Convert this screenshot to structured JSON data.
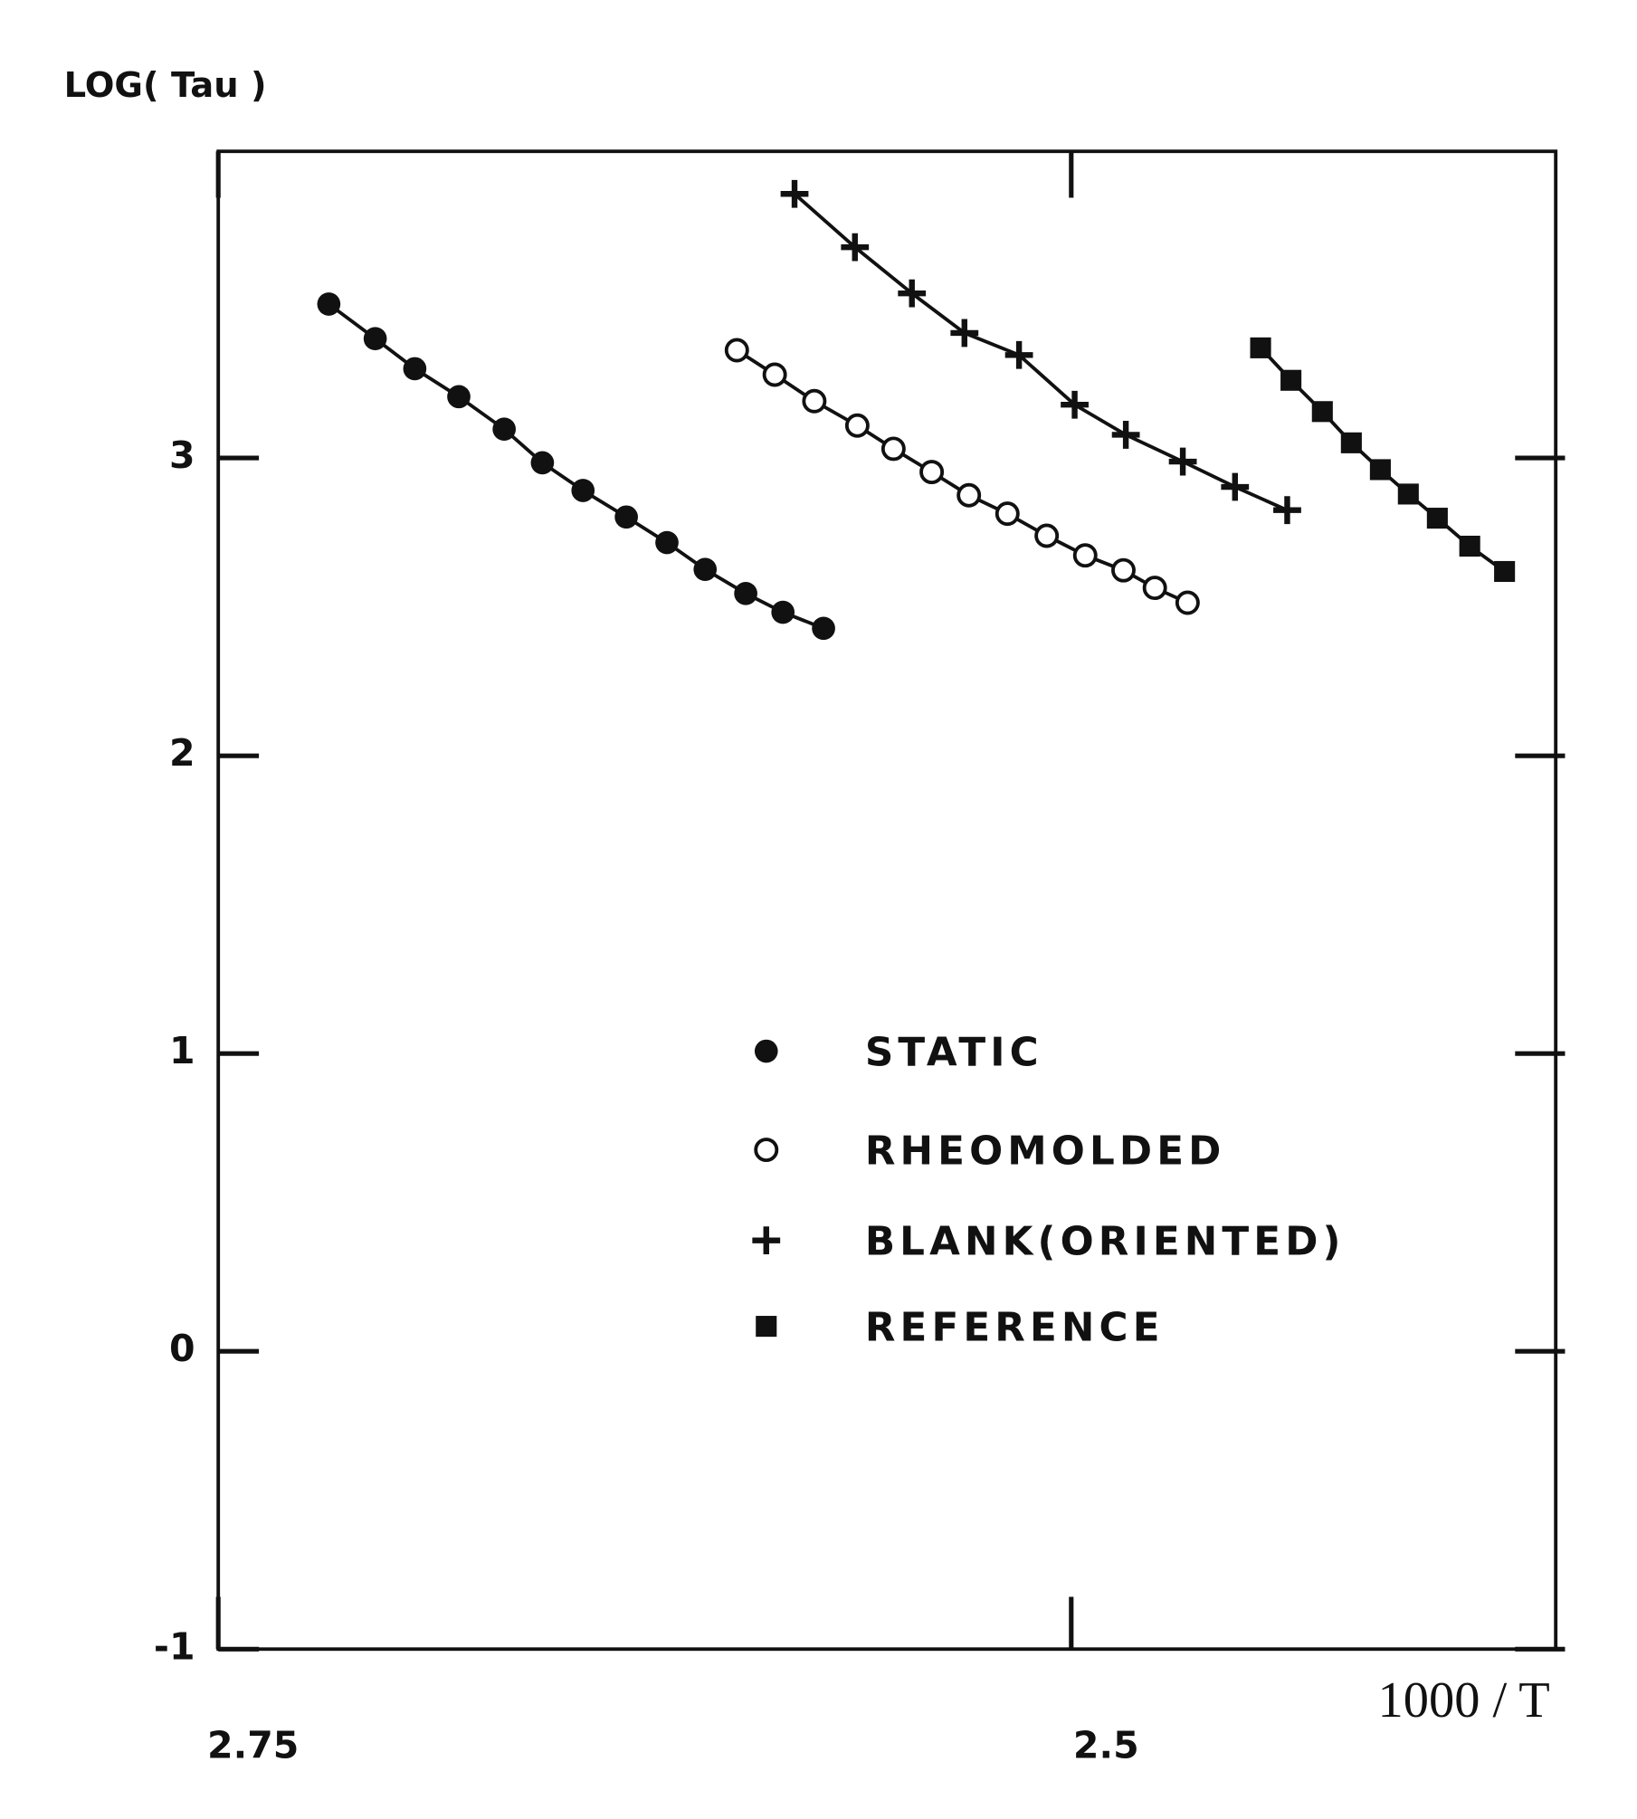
{
  "chart_data": {
    "type": "scatter",
    "y_label": "LOG( Tau )",
    "x_label": "1000 / T",
    "xlim": [
      2.75,
      2.358
    ],
    "xticks": [
      2.75,
      2.5
    ],
    "ylim": [
      -1,
      4.03
    ],
    "yticks": [
      -1,
      0,
      1,
      2,
      3
    ],
    "series": [
      {
        "name": "STATIC",
        "marker": "circle",
        "color": "#111",
        "x": [
          2.7176,
          2.704,
          2.6924,
          2.6795,
          2.6662,
          2.655,
          2.6431,
          2.6304,
          2.6185,
          2.6073,
          2.5954,
          2.5845,
          2.5726
        ],
        "values": [
          3.517,
          3.401,
          3.3,
          3.206,
          3.097,
          2.984,
          2.891,
          2.802,
          2.716,
          2.626,
          2.545,
          2.482,
          2.428
        ]
      },
      {
        "name": "RHEOMOLDED",
        "marker": "open-circle",
        "color": "#111",
        "x": [
          2.598,
          2.5869,
          2.5753,
          2.5627,
          2.5521,
          2.5409,
          2.53,
          2.5187,
          2.5072,
          2.4959,
          2.4847,
          2.4755,
          2.4659
        ],
        "values": [
          3.362,
          3.28,
          3.191,
          3.109,
          3.031,
          2.953,
          2.875,
          2.813,
          2.739,
          2.673,
          2.623,
          2.564,
          2.514
        ]
      },
      {
        "name": "BLANK(ORIENTED)",
        "marker": "plus",
        "color": "#111",
        "x": [
          2.5811,
          2.5634,
          2.5467,
          2.5313,
          2.5153,
          2.499,
          2.484,
          2.4673,
          2.452,
          2.4367
        ],
        "values": [
          3.887,
          3.708,
          3.553,
          3.42,
          3.346,
          3.179,
          3.078,
          2.988,
          2.903,
          2.825
        ]
      },
      {
        "name": "REFERENCE",
        "marker": "square",
        "color": "#111",
        "x": [
          2.4445,
          2.4356,
          2.4264,
          2.4179,
          2.4094,
          2.4012,
          2.3927,
          2.3832,
          2.373
        ],
        "values": [
          3.37,
          3.261,
          3.156,
          3.051,
          2.961,
          2.879,
          2.798,
          2.704,
          2.619
        ]
      }
    ]
  }
}
